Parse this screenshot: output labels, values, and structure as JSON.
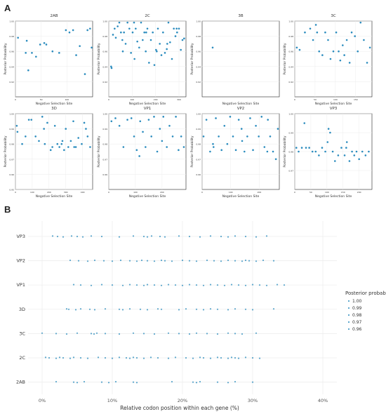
{
  "panel_labels": {
    "a": "A",
    "b": "B"
  },
  "colors": {
    "point": "#2b8cbe",
    "grid": "#ececec",
    "text": "#333333",
    "frame": "#222222"
  },
  "chart_data": [
    {
      "type": "scatter",
      "title": "2AB",
      "xlabel": "Negative Selection Site",
      "ylabel": "Posterior Probability",
      "xlim": [
        0,
        150
      ],
      "ylim": [
        0.9,
        1.0
      ],
      "xticks": [
        {
          "v": 0,
          "label": "0"
        },
        {
          "v": 50,
          "label": "50"
        },
        {
          "v": 100,
          "label": "100"
        }
      ],
      "yticks": [
        {
          "v": 0.92,
          "label": "0.92"
        },
        {
          "v": 0.94,
          "label": "0.94"
        },
        {
          "v": 0.96,
          "label": "0.96"
        },
        {
          "v": 0.98,
          "label": "0.98"
        },
        {
          "v": 1.0,
          "label": "1.00"
        }
      ],
      "x": [
        5,
        20,
        22,
        25,
        32,
        40,
        48,
        56,
        60,
        72,
        85,
        98,
        105,
        112,
        118,
        125,
        135,
        140,
        145,
        148
      ],
      "y": [
        0.978,
        0.958,
        0.974,
        0.935,
        0.958,
        0.953,
        0.969,
        0.971,
        0.969,
        0.96,
        0.958,
        0.988,
        0.985,
        0.988,
        0.955,
        0.967,
        0.93,
        0.988,
        0.99,
        0.965
      ]
    },
    {
      "type": "scatter",
      "title": "2C",
      "xlabel": "Negative Selection Site",
      "ylabel": "Posterior Probability",
      "xlim": [
        0,
        330
      ],
      "ylim": [
        0.9,
        1.0
      ],
      "xticks": [
        {
          "v": 0,
          "label": "0"
        },
        {
          "v": 100,
          "label": "100"
        },
        {
          "v": 200,
          "label": "200"
        },
        {
          "v": 300,
          "label": "300"
        }
      ],
      "yticks": [
        {
          "v": 0.92,
          "label": "0.92"
        },
        {
          "v": 0.94,
          "label": "0.94"
        },
        {
          "v": 0.96,
          "label": "0.96"
        },
        {
          "v": 0.98,
          "label": "0.98"
        },
        {
          "v": 1.0,
          "label": "1.00"
        }
      ],
      "x": [
        10,
        18,
        25,
        30,
        38,
        45,
        52,
        58,
        65,
        72,
        80,
        88,
        95,
        102,
        108,
        115,
        122,
        130,
        138,
        145,
        152,
        158,
        165,
        172,
        180,
        188,
        195,
        202,
        210,
        218,
        225,
        232,
        240,
        248,
        255,
        262,
        270,
        278,
        285,
        292,
        300,
        308,
        315,
        322,
        12,
        60,
        110,
        160,
        205,
        250,
        290
      ],
      "y": [
        0.94,
        0.982,
        0.99,
        0.978,
        0.993,
        0.998,
        0.985,
        0.975,
        0.985,
        0.97,
        0.998,
        0.99,
        0.958,
        0.985,
        0.998,
        0.99,
        0.973,
        0.965,
        0.998,
        0.975,
        0.985,
        0.96,
        0.99,
        0.945,
        0.975,
        0.985,
        0.942,
        0.962,
        0.99,
        0.97,
        0.955,
        0.985,
        0.958,
        0.963,
        0.998,
        0.972,
        0.95,
        0.99,
        0.98,
        0.985,
        0.99,
        0.962,
        0.975,
        0.977,
        0.938,
        0.96,
        0.95,
        0.985,
        0.96,
        0.97,
        0.99
      ]
    },
    {
      "type": "scatter",
      "title": "3B",
      "xlabel": "Negative Selection Site",
      "ylabel": "Posterior Probability",
      "xlim": [
        0,
        22
      ],
      "ylim": [
        0.9,
        1.0
      ],
      "xticks": [],
      "yticks": [
        {
          "v": 0.92,
          "label": "0.92"
        },
        {
          "v": 0.94,
          "label": "0.94"
        },
        {
          "v": 0.96,
          "label": "0.96"
        },
        {
          "v": 0.98,
          "label": "0.98"
        },
        {
          "v": 1.0,
          "label": "1.00"
        }
      ],
      "x": [
        3
      ],
      "y": [
        0.965
      ]
    },
    {
      "type": "scatter",
      "title": "3C",
      "xlabel": "Negative Selection Site",
      "ylabel": "Posterior Probability",
      "xlim": [
        0,
        190
      ],
      "ylim": [
        0.9,
        1.0
      ],
      "xticks": [
        {
          "v": 0,
          "label": "0"
        },
        {
          "v": 50,
          "label": "50"
        },
        {
          "v": 100,
          "label": "100"
        },
        {
          "v": 150,
          "label": "150"
        }
      ],
      "yticks": [
        {
          "v": 0.92,
          "label": "0.92"
        },
        {
          "v": 0.94,
          "label": "0.94"
        },
        {
          "v": 0.96,
          "label": "0.96"
        },
        {
          "v": 0.98,
          "label": "0.98"
        },
        {
          "v": 1.0,
          "label": "1.00"
        }
      ],
      "x": [
        5,
        12,
        25,
        38,
        45,
        52,
        60,
        68,
        75,
        82,
        88,
        95,
        102,
        108,
        112,
        118,
        122,
        128,
        135,
        140,
        148,
        155,
        162,
        170,
        178,
        185,
        55
      ],
      "y": [
        0.965,
        0.962,
        0.985,
        0.99,
        0.975,
        0.995,
        0.96,
        0.955,
        0.985,
        0.975,
        0.95,
        0.96,
        0.985,
        0.96,
        0.948,
        0.968,
        0.955,
        0.975,
        0.945,
        0.985,
        0.98,
        0.96,
        0.998,
        0.975,
        0.945,
        0.965,
        0.985
      ]
    },
    {
      "type": "scatter",
      "title": "3D",
      "xlabel": "Negative Selection Site",
      "ylabel": "Posterior Probability",
      "xlim": [
        0,
        460
      ],
      "ylim": [
        0.95,
        1.0
      ],
      "xticks": [
        {
          "v": 0,
          "label": "0"
        },
        {
          "v": 100,
          "label": "100"
        },
        {
          "v": 200,
          "label": "200"
        },
        {
          "v": 300,
          "label": "300"
        },
        {
          "v": 400,
          "label": "400"
        }
      ],
      "yticks": [
        {
          "v": 0.95,
          "label": "0.95"
        },
        {
          "v": 0.96,
          "label": "0.96"
        },
        {
          "v": 0.97,
          "label": "0.97"
        },
        {
          "v": 0.98,
          "label": "0.98"
        },
        {
          "v": 0.99,
          "label": "0.99"
        },
        {
          "v": 1.0,
          "label": "1.00"
        }
      ],
      "x": [
        8,
        40,
        60,
        80,
        95,
        120,
        140,
        160,
        175,
        190,
        210,
        220,
        235,
        250,
        262,
        275,
        290,
        300,
        315,
        330,
        345,
        360,
        375,
        395,
        410,
        430,
        445,
        12,
        170,
        280,
        350,
        420
      ],
      "y": [
        0.992,
        0.98,
        0.985,
        0.996,
        0.996,
        0.985,
        0.982,
        0.998,
        0.98,
        0.994,
        0.976,
        0.978,
        0.992,
        0.98,
        0.978,
        0.98,
        0.976,
        0.99,
        0.978,
        0.982,
        0.995,
        0.978,
        0.984,
        0.98,
        0.994,
        0.985,
        0.978,
        0.988,
        0.99,
        0.982,
        0.978,
        0.99
      ]
    },
    {
      "type": "scatter",
      "title": "VP1",
      "xlabel": "Negative Selection Site",
      "ylabel": "Posterior Probability",
      "xlim": [
        0,
        290
      ],
      "ylim": [
        0.95,
        1.0
      ],
      "xticks": [
        {
          "v": 0,
          "label": "0"
        },
        {
          "v": 100,
          "label": "100"
        },
        {
          "v": 200,
          "label": "200"
        }
      ],
      "yticks": [
        {
          "v": 0.96,
          "label": "0.96"
        },
        {
          "v": 0.97,
          "label": "0.97"
        },
        {
          "v": 0.98,
          "label": "0.98"
        },
        {
          "v": 0.99,
          "label": "0.99"
        },
        {
          "v": 1.0,
          "label": "1.00"
        }
      ],
      "x": [
        10,
        25,
        40,
        55,
        70,
        85,
        95,
        105,
        118,
        128,
        138,
        150,
        160,
        170,
        182,
        192,
        205,
        218,
        228,
        240,
        252,
        262,
        272,
        282,
        115,
        200
      ],
      "y": [
        0.995,
        0.997,
        0.992,
        0.978,
        0.996,
        0.997,
        0.985,
        0.976,
        0.995,
        0.988,
        0.978,
        0.996,
        0.985,
        0.998,
        0.975,
        0.99,
        0.998,
        0.978,
        0.992,
        0.985,
        0.998,
        0.976,
        0.985,
        0.978,
        0.972,
        0.982
      ]
    },
    {
      "type": "scatter",
      "title": "VP2",
      "xlabel": "Negative Selection Site",
      "ylabel": "Posterior Probability",
      "xlim": [
        0,
        270
      ],
      "ylim": [
        0.95,
        1.0
      ],
      "xticks": [
        {
          "v": 0,
          "label": "0"
        },
        {
          "v": 100,
          "label": "100"
        },
        {
          "v": 200,
          "label": "200"
        }
      ],
      "yticks": [
        {
          "v": 0.96,
          "label": "0.96"
        },
        {
          "v": 0.97,
          "label": "0.97"
        },
        {
          "v": 0.98,
          "label": "0.98"
        },
        {
          "v": 0.99,
          "label": "0.99"
        },
        {
          "v": 1.0,
          "label": "1.00"
        }
      ],
      "x": [
        5,
        15,
        28,
        38,
        48,
        58,
        68,
        78,
        88,
        98,
        108,
        118,
        128,
        138,
        148,
        158,
        168,
        178,
        188,
        198,
        208,
        218,
        228,
        238,
        248,
        258,
        265,
        40,
        140,
        230
      ],
      "y": [
        0.985,
        0.996,
        0.975,
        0.98,
        0.997,
        0.985,
        0.976,
        0.992,
        0.98,
        0.998,
        0.985,
        0.976,
        0.996,
        0.99,
        0.975,
        0.985,
        0.997,
        0.976,
        0.992,
        0.985,
        0.998,
        0.978,
        0.975,
        0.985,
        0.975,
        0.97,
        0.99,
        0.978,
        0.982,
        0.996
      ]
    },
    {
      "type": "scatter",
      "title": "VP3",
      "xlabel": "Negative Selection Site",
      "ylabel": "Posterior Probability",
      "xlim": [
        0,
        240
      ],
      "ylim": [
        0.96,
        1.0
      ],
      "xticks": [
        {
          "v": 0,
          "label": "0"
        },
        {
          "v": 50,
          "label": "50"
        },
        {
          "v": 100,
          "label": "100"
        },
        {
          "v": 150,
          "label": "150"
        },
        {
          "v": 200,
          "label": "200"
        }
      ],
      "yticks": [
        {
          "v": 0.97,
          "label": "0.97"
        },
        {
          "v": 0.98,
          "label": "0.98"
        },
        {
          "v": 0.99,
          "label": "0.99"
        },
        {
          "v": 1.0,
          "label": "1.00"
        }
      ],
      "x": [
        5,
        12,
        22,
        35,
        45,
        55,
        65,
        75,
        85,
        95,
        102,
        110,
        118,
        125,
        135,
        145,
        155,
        162,
        170,
        178,
        185,
        192,
        200,
        210,
        220,
        230,
        30,
        105,
        160
      ],
      "y": [
        0.982,
        0.98,
        0.982,
        0.982,
        0.982,
        0.98,
        0.98,
        0.978,
        0.982,
        0.98,
        0.985,
        0.99,
        0.98,
        0.975,
        0.978,
        0.982,
        0.978,
        0.985,
        0.975,
        0.98,
        0.978,
        0.98,
        0.976,
        0.98,
        0.978,
        0.98,
        0.995,
        0.992,
        0.982
      ]
    },
    {
      "type": "scatter",
      "title": "",
      "xlabel": "Relative codon position within each gene (%)",
      "ylabel": "",
      "categories": [
        "VP3",
        "VP2",
        "VP1",
        "3D",
        "3C",
        "2C",
        "2AB"
      ],
      "xlim": [
        -2,
        42
      ],
      "xticks": [
        {
          "v": 0,
          "label": "0%"
        },
        {
          "v": 10,
          "label": "10%"
        },
        {
          "v": 20,
          "label": "20%"
        },
        {
          "v": 30,
          "label": "30%"
        },
        {
          "v": 40,
          "label": "40%"
        }
      ],
      "series": [
        {
          "category": "VP3",
          "x": [
            1.5,
            2.2,
            3.0,
            4.2,
            5.0,
            5.8,
            7.0,
            8.5,
            11.0,
            13.0,
            14.5,
            15.0,
            15.6,
            16.8,
            17.5,
            19.5,
            21.0,
            22.5,
            24.0,
            25.5,
            26.5,
            27.5,
            29.0,
            30.5,
            32.0
          ]
        },
        {
          "category": "VP2",
          "x": [
            4.0,
            5.2,
            6.5,
            7.5,
            8.8,
            10.0,
            11.2,
            12.5,
            13.5,
            14.2,
            15.0,
            16.0,
            17.0,
            17.5,
            18.5,
            20.0,
            21.0,
            22.0,
            23.5,
            24.5,
            25.5,
            26.5,
            27.5,
            28.5,
            29.0,
            29.5,
            30.5,
            31.5,
            33.0
          ]
        },
        {
          "category": "VP1",
          "x": [
            4.5,
            5.5,
            7.0,
            8.5,
            10.0,
            11.5,
            12.5,
            13.5,
            14.5,
            15.0,
            16.0,
            17.0,
            18.0,
            19.0,
            20.0,
            21.0,
            22.0,
            23.0,
            24.0,
            25.0,
            26.0,
            27.0,
            28.0,
            29.0,
            30.0,
            31.0,
            32.0,
            33.5,
            34.5
          ]
        },
        {
          "category": "3D",
          "x": [
            3.5,
            3.8,
            4.8,
            5.5,
            6.8,
            7.5,
            9.0,
            11.0,
            11.5,
            12.5,
            14.0,
            15.0,
            16.5,
            17.0,
            19.5,
            20.5,
            22.0,
            23.0,
            24.0,
            25.0,
            26.5,
            27.5,
            29.0,
            30.0,
            33.0
          ]
        },
        {
          "category": "3C",
          "x": [
            0.0,
            2.0,
            3.5,
            5.0,
            7.0,
            7.4,
            7.8,
            9.0,
            11.0,
            13.0,
            14.5,
            16.0,
            18.0,
            19.5,
            21.0,
            22.0,
            23.5,
            25.0,
            26.5,
            27.5,
            28.5,
            30.5
          ]
        },
        {
          "category": "2C",
          "x": [
            0.5,
            1.0,
            2.0,
            2.5,
            3.0,
            4.0,
            4.5,
            5.5,
            6.5,
            8.0,
            9.0,
            10.0,
            11.0,
            12.0,
            12.5,
            13.0,
            13.5,
            14.5,
            15.5,
            16.5,
            18.0,
            19.0,
            20.5,
            21.5,
            22.5,
            23.0,
            24.0,
            25.0,
            25.5,
            26.5,
            27.0,
            27.5,
            28.0,
            29.0,
            30.0,
            31.0
          ]
        },
        {
          "category": "2AB",
          "x": [
            2.0,
            4.5,
            5.0,
            6.0,
            8.5,
            9.5,
            10.5,
            13.0,
            13.5,
            18.5,
            21.5,
            22.0,
            22.5,
            25.0,
            26.5,
            27.5,
            30.0
          ]
        }
      ],
      "legend": {
        "title": "Posterior probability",
        "entries": [
          "1.00",
          "0.99",
          "0.98",
          "0.97",
          "0.96"
        ],
        "placement": "right"
      }
    }
  ]
}
